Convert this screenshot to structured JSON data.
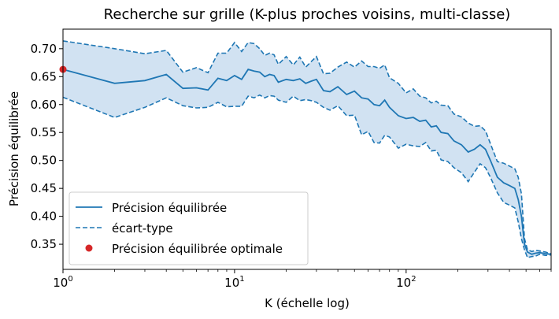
{
  "chart_data": {
    "type": "line",
    "title": "Recherche sur grille (K-plus proches voisins, multi-classe)",
    "xlabel": "K (échelle log)",
    "ylabel": "Précision équilibrée",
    "xscale": "log",
    "xlim": [
      1,
      700
    ],
    "ylim": [
      0.305,
      0.735
    ],
    "x_ticks": [
      {
        "value": 1,
        "base": "10",
        "exp": "0"
      },
      {
        "value": 10,
        "base": "10",
        "exp": "1"
      },
      {
        "value": 100,
        "base": "10",
        "exp": "2"
      }
    ],
    "y_ticks": [
      "0.35",
      "0.40",
      "0.45",
      "0.50",
      "0.55",
      "0.60",
      "0.65",
      "0.70"
    ],
    "grid": false,
    "legend_position": "lower-left",
    "colors": {
      "line": "#1f77b4",
      "band": "#c6dbef",
      "best": "#d62728"
    },
    "series": [
      {
        "name": "Précision équilibrée",
        "x": [
          1,
          2,
          3,
          4,
          5,
          6,
          7,
          8,
          9,
          10,
          11,
          12,
          13,
          14,
          15,
          16,
          17,
          18,
          20,
          22,
          24,
          26,
          28,
          30,
          33,
          36,
          40,
          45,
          50,
          55,
          60,
          65,
          70,
          75,
          80,
          90,
          100,
          110,
          120,
          130,
          140,
          150,
          160,
          175,
          190,
          210,
          230,
          250,
          270,
          290,
          310,
          340,
          370,
          400,
          430,
          450,
          470,
          490,
          510,
          540,
          570,
          600,
          650,
          700
        ],
        "y": [
          0.663,
          0.638,
          0.643,
          0.654,
          0.629,
          0.63,
          0.626,
          0.647,
          0.643,
          0.652,
          0.645,
          0.663,
          0.66,
          0.658,
          0.65,
          0.654,
          0.652,
          0.64,
          0.645,
          0.643,
          0.646,
          0.638,
          0.642,
          0.645,
          0.625,
          0.623,
          0.632,
          0.618,
          0.624,
          0.612,
          0.61,
          0.6,
          0.598,
          0.608,
          0.595,
          0.58,
          0.575,
          0.577,
          0.57,
          0.572,
          0.56,
          0.562,
          0.55,
          0.548,
          0.535,
          0.528,
          0.515,
          0.52,
          0.528,
          0.52,
          0.5,
          0.47,
          0.46,
          0.455,
          0.45,
          0.43,
          0.4,
          0.35,
          0.336,
          0.332,
          0.334,
          0.335,
          0.333,
          0.332
        ]
      },
      {
        "name": "écart-type",
        "x": [
          1,
          2,
          3,
          4,
          5,
          6,
          7,
          8,
          9,
          10,
          11,
          12,
          13,
          14,
          15,
          16,
          17,
          18,
          20,
          22,
          24,
          26,
          28,
          30,
          33,
          36,
          40,
          45,
          50,
          55,
          60,
          65,
          70,
          75,
          80,
          90,
          100,
          110,
          120,
          130,
          140,
          150,
          160,
          175,
          190,
          210,
          230,
          250,
          270,
          290,
          310,
          340,
          370,
          400,
          430,
          450,
          470,
          490,
          510,
          540,
          570,
          600,
          650,
          700
        ],
        "upper": [
          0.714,
          0.7,
          0.691,
          0.697,
          0.658,
          0.666,
          0.657,
          0.692,
          0.692,
          0.711,
          0.695,
          0.711,
          0.709,
          0.7,
          0.688,
          0.692,
          0.689,
          0.672,
          0.686,
          0.671,
          0.685,
          0.667,
          0.677,
          0.686,
          0.655,
          0.656,
          0.667,
          0.676,
          0.667,
          0.678,
          0.668,
          0.668,
          0.665,
          0.671,
          0.648,
          0.638,
          0.621,
          0.628,
          0.615,
          0.612,
          0.603,
          0.606,
          0.599,
          0.598,
          0.583,
          0.578,
          0.567,
          0.561,
          0.562,
          0.553,
          0.53,
          0.498,
          0.495,
          0.49,
          0.485,
          0.47,
          0.44,
          0.36,
          0.34,
          0.337,
          0.339,
          0.338,
          0.336,
          0.333
        ],
        "lower": [
          0.613,
          0.577,
          0.595,
          0.612,
          0.598,
          0.594,
          0.595,
          0.604,
          0.596,
          0.597,
          0.597,
          0.615,
          0.612,
          0.617,
          0.612,
          0.616,
          0.615,
          0.608,
          0.604,
          0.615,
          0.607,
          0.609,
          0.607,
          0.604,
          0.595,
          0.59,
          0.598,
          0.58,
          0.581,
          0.546,
          0.552,
          0.532,
          0.531,
          0.545,
          0.542,
          0.522,
          0.529,
          0.526,
          0.525,
          0.532,
          0.517,
          0.518,
          0.501,
          0.498,
          0.487,
          0.478,
          0.462,
          0.479,
          0.494,
          0.487,
          0.47,
          0.442,
          0.425,
          0.42,
          0.415,
          0.39,
          0.36,
          0.34,
          0.326,
          0.328,
          0.329,
          0.332,
          0.33,
          0.331
        ]
      }
    ],
    "best_point": {
      "name": "Précision équilibrée optimale",
      "x": 1,
      "y": 0.663
    }
  }
}
